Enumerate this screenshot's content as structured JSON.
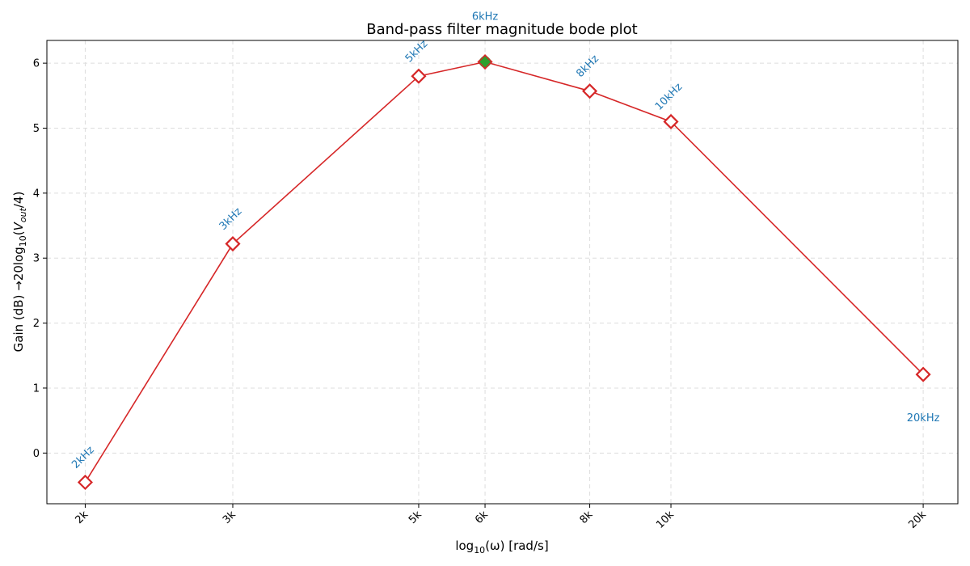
{
  "chart_data": {
    "type": "line",
    "title": "Band-pass filter magnitude bode plot",
    "xlabel": "log₁₀(ω) [rad/s]",
    "ylabel": "Gain (dB)  →20log₁₀(V_out/4)",
    "x_scale": "log",
    "x": [
      2000,
      3000,
      5000,
      6000,
      8000,
      10000,
      20000
    ],
    "x_tick_labels": [
      "2k",
      "3k",
      "5k",
      "6k",
      "8k",
      "10k",
      "20k"
    ],
    "point_labels": [
      "2kHz",
      "3kHz",
      "5kHz",
      "6kHz",
      "8kHz",
      "10kHz",
      "20kHz"
    ],
    "series": [
      {
        "values": [
          -0.45,
          3.22,
          5.8,
          6.02,
          5.57,
          5.1,
          1.21
        ]
      }
    ],
    "peak": {
      "x": 6000,
      "y": 6.02
    },
    "xlim": [
      1800,
      22000
    ],
    "ylim": [
      -0.78,
      6.35
    ],
    "y_ticks": [
      0,
      1,
      2,
      3,
      4,
      5,
      6
    ],
    "grid": true,
    "colors": {
      "line": "#d62728",
      "peak": "#2ca02c",
      "annotation": "#1f77b4",
      "grid": "#dddddd"
    }
  }
}
